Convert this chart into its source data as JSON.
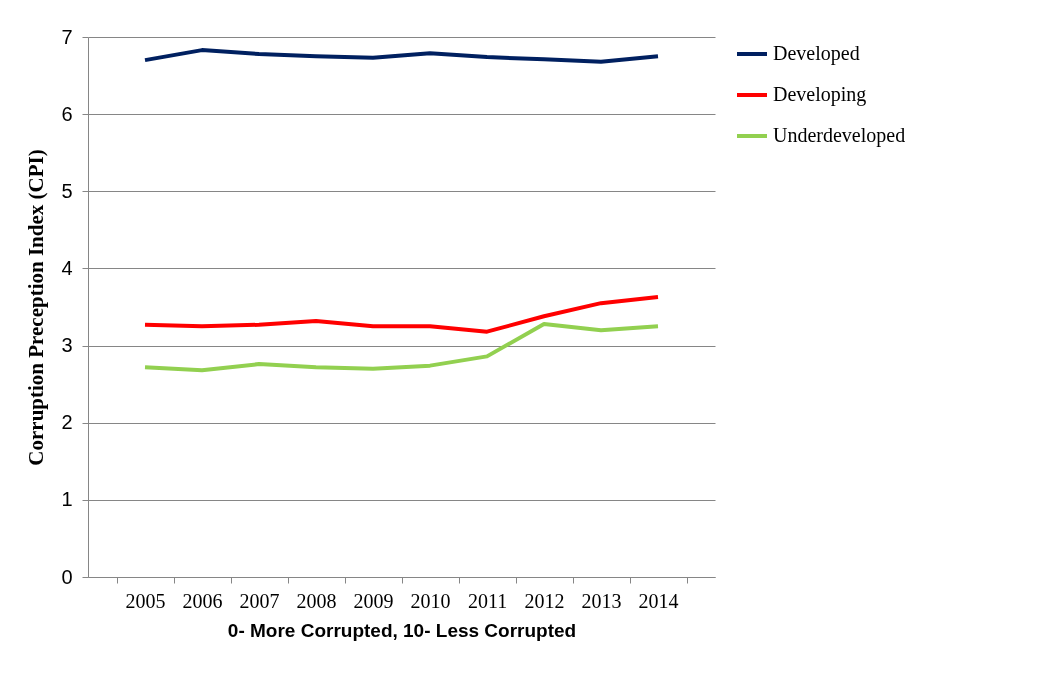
{
  "chart_data": {
    "type": "line",
    "ylabel": "Corruption Preception Index (CPI)",
    "xlabel": "0- More Corrupted, 10- Less Corrupted",
    "categories": [
      "2005",
      "2006",
      "2007",
      "2008",
      "2009",
      "2010",
      "2011",
      "2012",
      "2013",
      "2014"
    ],
    "series": [
      {
        "name": "Developed",
        "color": "#002060",
        "values": [
          6.7,
          6.83,
          6.78,
          6.75,
          6.73,
          6.79,
          6.74,
          6.71,
          6.68,
          6.75
        ]
      },
      {
        "name": "Developing",
        "color": "#ff0000",
        "values": [
          3.27,
          3.25,
          3.27,
          3.32,
          3.25,
          3.25,
          3.18,
          3.38,
          3.55,
          3.63
        ]
      },
      {
        "name": "Underdeveloped",
        "color": "#92d050",
        "values": [
          2.72,
          2.68,
          2.76,
          2.72,
          2.7,
          2.74,
          2.86,
          3.28,
          3.2,
          3.25
        ]
      }
    ],
    "ylim": [
      0,
      7
    ],
    "yticks": [
      0,
      1,
      2,
      3,
      4,
      5,
      6,
      7
    ],
    "grid": "y",
    "legend": "right",
    "marker": "none",
    "line_style": "solid"
  }
}
